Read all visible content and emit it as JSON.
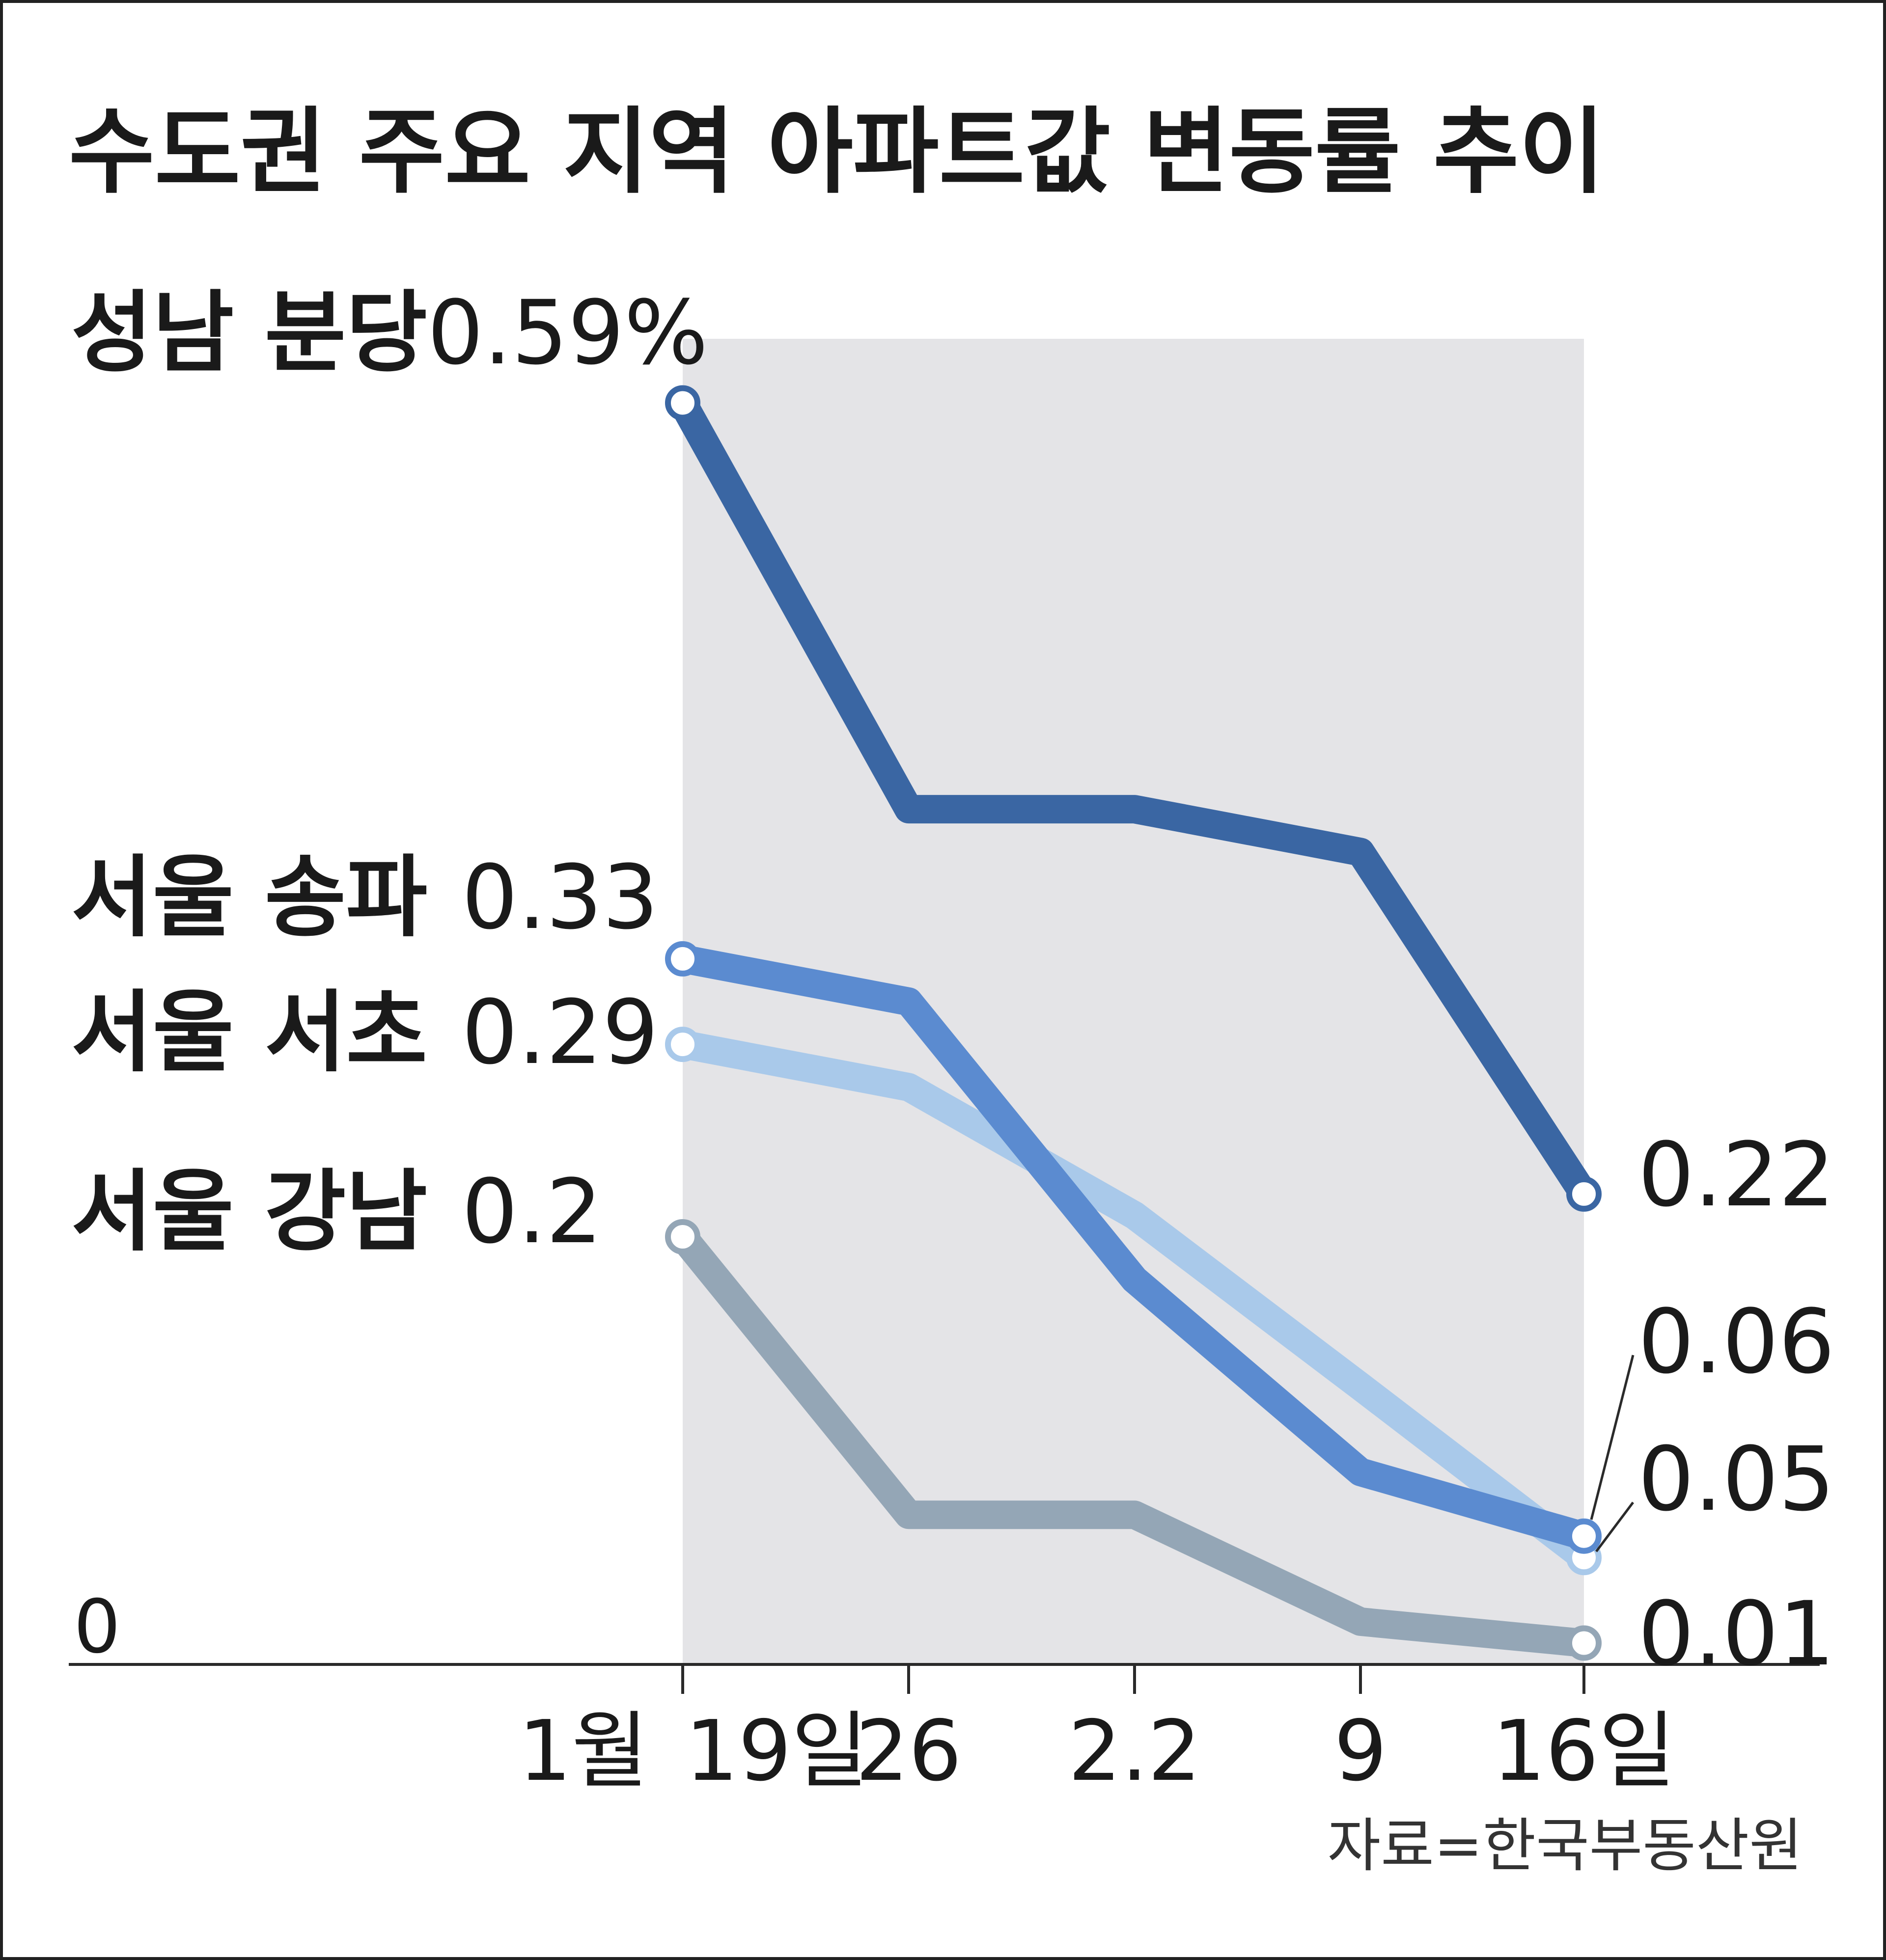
{
  "chart_data": {
    "type": "line",
    "title": "수도권 주요 지역 아파트값 변동률 추이",
    "x": [
      "1월 19일",
      "26",
      "2.2",
      "9",
      "16일"
    ],
    "tick_labels": [
      "1월",
      "19일",
      "26",
      "2.2",
      "9",
      "16일"
    ],
    "ylim": [
      0,
      0.62
    ],
    "zero_label": "0",
    "series": [
      {
        "name": "성남 분당",
        "start_label": "0.59%",
        "end_label": "0.22",
        "color": "#3a66a3",
        "values": [
          0.59,
          0.4,
          0.4,
          0.38,
          0.22
        ]
      },
      {
        "name": "서울 송파",
        "start_label": "0.33",
        "end_label": "0.06",
        "color": "#5b8bd0",
        "values": [
          0.33,
          0.31,
          0.18,
          0.09,
          0.06
        ]
      },
      {
        "name": "서울 서초",
        "start_label": "0.29",
        "end_label": "0.05",
        "color": "#a9c9ea",
        "values": [
          0.29,
          0.27,
          0.21,
          0.13,
          0.05
        ]
      },
      {
        "name": "서울 강남",
        "start_label": "0.2",
        "end_label": "0.01",
        "color": "#94a6b6",
        "values": [
          0.2,
          0.07,
          0.07,
          0.02,
          0.01
        ]
      }
    ],
    "source": "자료=한국부동산원"
  }
}
